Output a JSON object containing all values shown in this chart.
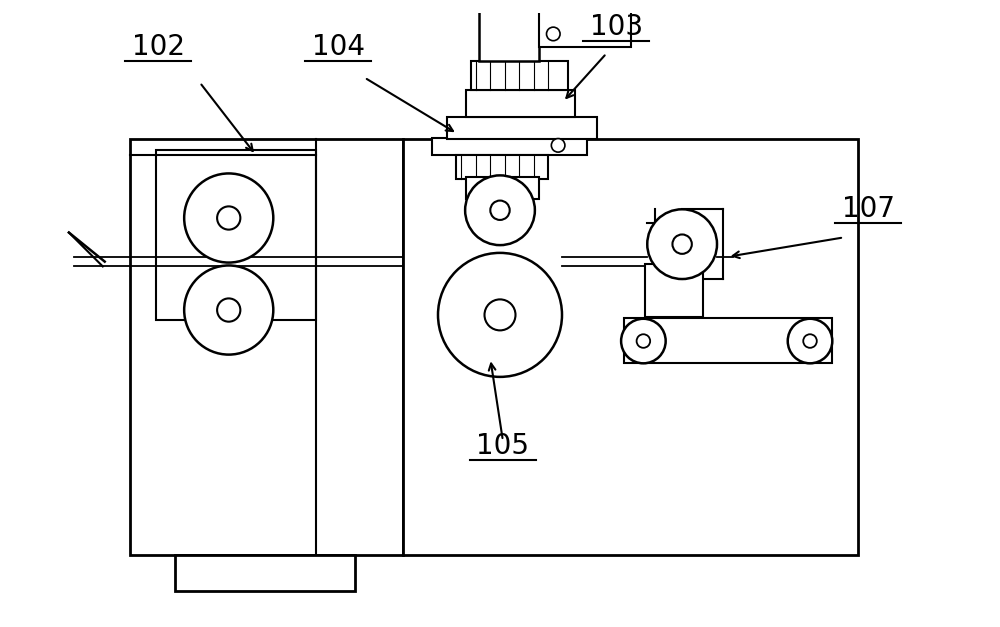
{
  "bg_color": "#ffffff",
  "line_color": "#000000",
  "lw": 1.5,
  "figsize": [
    10,
    6.27
  ],
  "label_fontsize": 20
}
